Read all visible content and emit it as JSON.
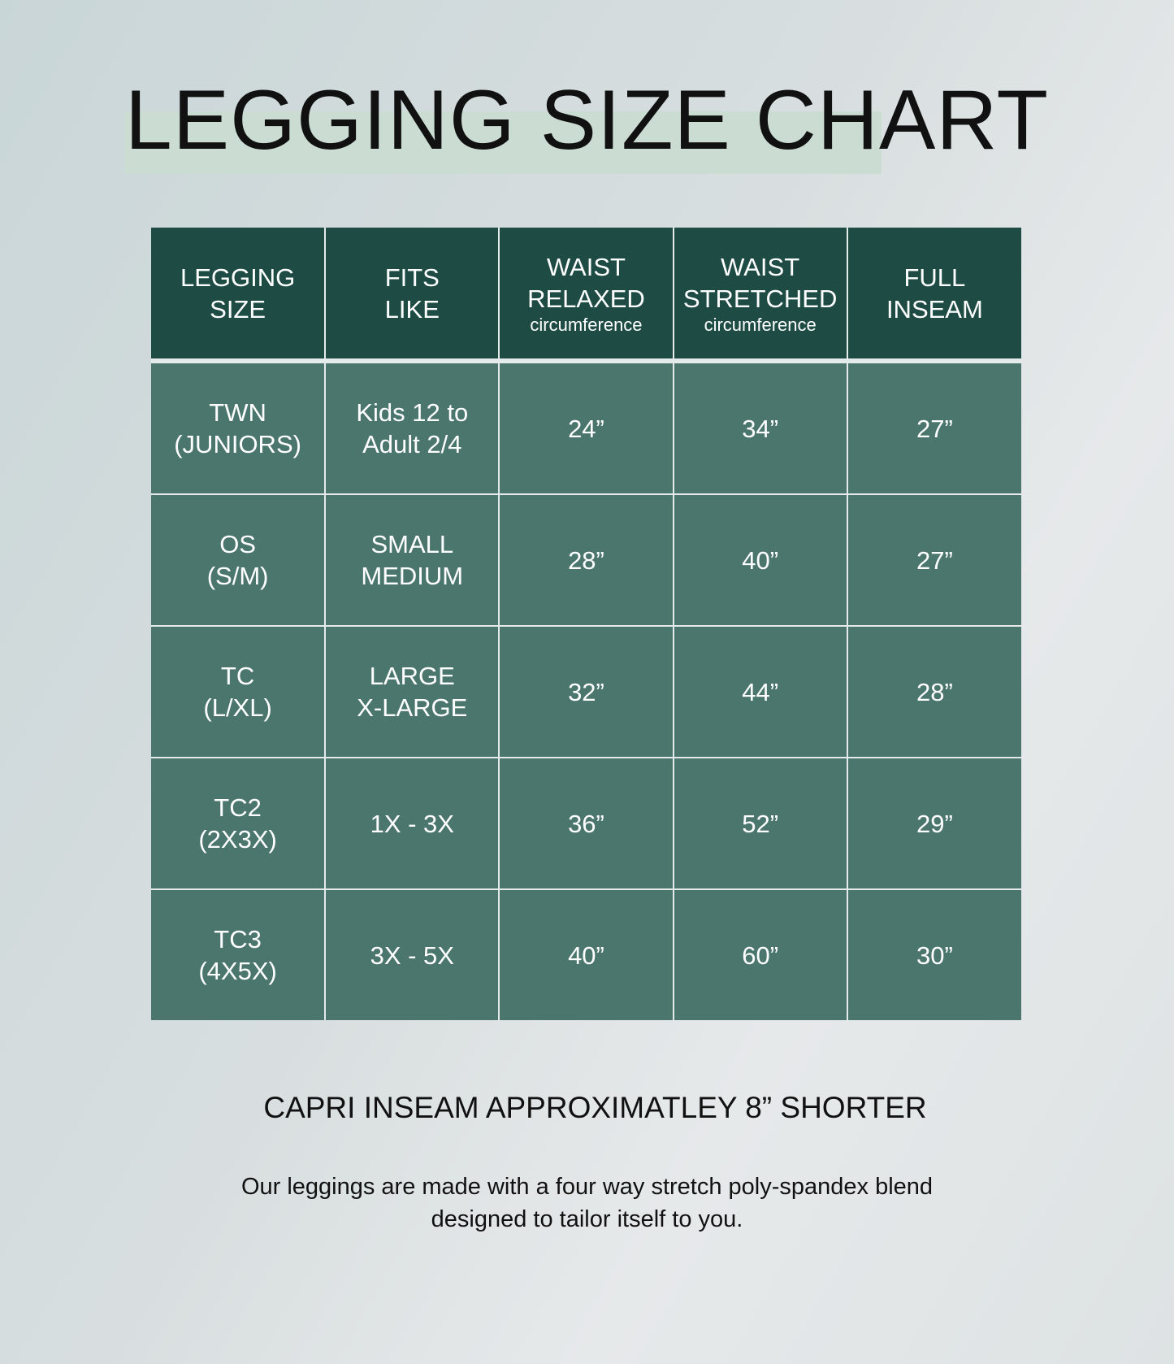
{
  "title": "LEGGING SIZE CHART",
  "colors": {
    "header_bg": "#1e4c45",
    "cell_bg": "#4b766e",
    "title_highlight": "#cbdcd3"
  },
  "table": {
    "headers": [
      {
        "line1": "LEGGING",
        "line2": "SIZE",
        "sub": ""
      },
      {
        "line1": "FITS",
        "line2": "LIKE",
        "sub": ""
      },
      {
        "line1": "WAIST",
        "line2": "RELAXED",
        "sub": "circumference"
      },
      {
        "line1": "WAIST",
        "line2": "STRETCHED",
        "sub": "circumference"
      },
      {
        "line1": "FULL",
        "line2": "INSEAM",
        "sub": ""
      }
    ],
    "rows": [
      {
        "size": [
          "TWN",
          "(JUNIORS)"
        ],
        "fits": [
          "Kids 12 to",
          "Adult 2/4"
        ],
        "relaxed": "24”",
        "stretched": "34”",
        "inseam": "27”"
      },
      {
        "size": [
          "OS",
          "(S/M)"
        ],
        "fits": [
          "SMALL",
          "MEDIUM"
        ],
        "relaxed": "28”",
        "stretched": "40”",
        "inseam": "27”"
      },
      {
        "size": [
          "TC",
          "(L/XL)"
        ],
        "fits": [
          "LARGE",
          "X-LARGE"
        ],
        "relaxed": "32”",
        "stretched": "44”",
        "inseam": "28”"
      },
      {
        "size": [
          "TC2",
          "(2X3X)"
        ],
        "fits": [
          "1X - 3X",
          ""
        ],
        "relaxed": "36”",
        "stretched": "52”",
        "inseam": "29”"
      },
      {
        "size": [
          "TC3",
          "(4X5X)"
        ],
        "fits": [
          "3X - 5X",
          ""
        ],
        "relaxed": "40”",
        "stretched": "60”",
        "inseam": "30”"
      }
    ]
  },
  "capri_note": "CAPRI INSEAM APPROXIMATLEY 8” SHORTER",
  "description": [
    "Our leggings are made with a four way stretch poly-spandex blend",
    "designed to tailor itself to you."
  ]
}
